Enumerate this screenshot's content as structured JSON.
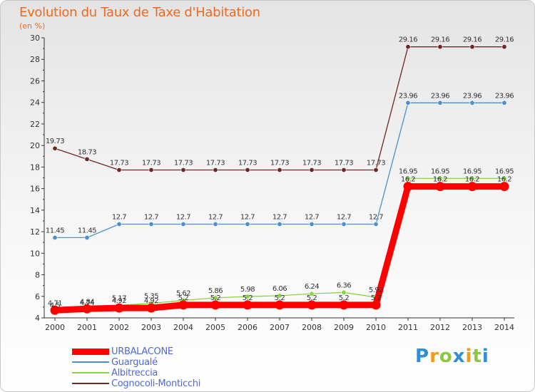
{
  "chart_data": {
    "type": "line",
    "title": "Evolution du Taux de Taxe d'Habitation",
    "subtitle": "(en %)",
    "xlabel": "",
    "ylabel": "",
    "x": [
      2000,
      2001,
      2002,
      2003,
      2004,
      2005,
      2006,
      2007,
      2008,
      2009,
      2010,
      2011,
      2012,
      2013,
      2014
    ],
    "x_labels": [
      "2000",
      "2001",
      "2002",
      "2003",
      "2004",
      "2005",
      "2006",
      "2007",
      "2008",
      "2009",
      "2010",
      "2011",
      "2012",
      "2013",
      "2014"
    ],
    "ylim": [
      4,
      30
    ],
    "y_ticks": [
      4,
      6,
      8,
      10,
      12,
      14,
      16,
      18,
      20,
      22,
      24,
      26,
      28,
      30
    ],
    "y_tick_labels": [
      "4",
      "6",
      "8",
      "10",
      "12",
      "14",
      "16",
      "18",
      "20",
      "22",
      "24",
      "26",
      "28",
      "30"
    ],
    "grid": false,
    "legend_position": "bottom-left",
    "series": [
      {
        "name": "URBALACONE",
        "color": "#ff0000",
        "values": [
          4.71,
          4.84,
          4.92,
          4.92,
          5.2,
          5.2,
          5.2,
          5.2,
          5.2,
          5.2,
          5.2,
          16.2,
          16.2,
          16.2,
          16.2
        ],
        "labels": [
          "4.71",
          "4.84",
          "4.92",
          "4.92",
          "5.2",
          "5.2",
          "5.2",
          "5.2",
          "5.2",
          "5.2",
          "5.2",
          "16.2",
          "16.2",
          "16.2",
          "16.2"
        ]
      },
      {
        "name": "Guargualé",
        "color": "#4d8fcc",
        "values": [
          11.45,
          11.45,
          12.7,
          12.7,
          12.7,
          12.7,
          12.7,
          12.7,
          12.7,
          12.7,
          12.7,
          23.96,
          23.96,
          23.96,
          23.96
        ],
        "labels": [
          "11.45",
          "11.45",
          "12.7",
          "12.7",
          "12.7",
          "12.7",
          "12.7",
          "12.7",
          "12.7",
          "12.7",
          "12.7",
          "23.96",
          "23.96",
          "23.96",
          "23.96"
        ]
      },
      {
        "name": "Albitreccia",
        "color": "#86d640",
        "values": [
          4.5,
          4.74,
          5.17,
          5.35,
          5.62,
          5.86,
          5.98,
          6.06,
          6.24,
          6.36,
          5.92,
          16.95,
          16.95,
          16.95,
          16.95
        ],
        "labels": [
          "4.5",
          "4.74",
          "5.17",
          "5.35",
          "5.62",
          "5.86",
          "5.98",
          "6.06",
          "6.24",
          "6.36",
          "5.92",
          "16.95",
          "16.95",
          "16.95",
          "16.95"
        ]
      },
      {
        "name": "Cognocoli-Monticchi",
        "color": "#6e2626",
        "values": [
          19.73,
          18.73,
          17.73,
          17.73,
          17.73,
          17.73,
          17.73,
          17.73,
          17.73,
          17.73,
          17.73,
          29.16,
          29.16,
          29.16,
          29.16
        ],
        "labels": [
          "19.73",
          "18.73",
          "17.73",
          "17.73",
          "17.73",
          "17.73",
          "17.73",
          "17.73",
          "17.73",
          "17.73",
          "17.73",
          "29.16",
          "29.16",
          "29.16",
          "29.16"
        ]
      }
    ]
  },
  "brand": {
    "name": "Proxiti",
    "letters": [
      "P",
      "r",
      "o",
      "x",
      "i",
      "t",
      "i"
    ],
    "colors": [
      "#2e8fd6",
      "#f29a1e",
      "#8dc63f",
      "#2e8fd6",
      "#f29a1e",
      "#8dc63f",
      "#2e8fd6"
    ]
  }
}
